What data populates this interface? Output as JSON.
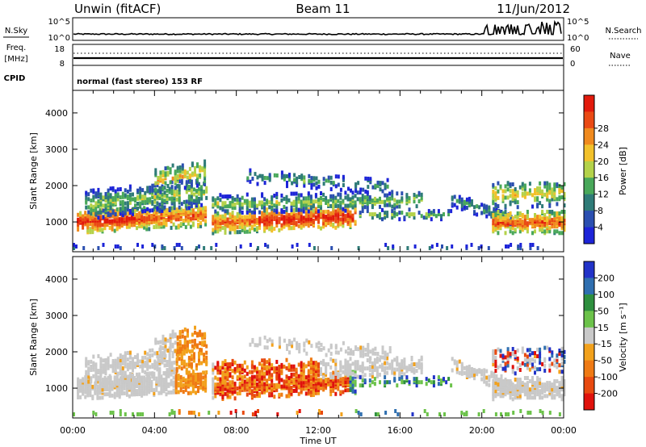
{
  "header": {
    "left": "Unwin (fitACF)",
    "center": "Beam 11",
    "right": "11/Jun/2012"
  },
  "panels": {
    "nsky": {
      "label": "N.Sky",
      "left_ticks": [
        "10^5",
        "10^0"
      ],
      "right_label": "N.Search",
      "right_ticks": [
        "10^5",
        "10^0"
      ]
    },
    "freq": {
      "label_line1": "Freq.",
      "label_line2": "[MHz]",
      "left_ticks": [
        "18",
        "8"
      ],
      "right_label": "Nave",
      "right_ticks": [
        "60",
        "0"
      ]
    },
    "cpid": {
      "label": "CPID",
      "mode": "normal (fast stereo) 153 RF"
    }
  },
  "chart_data": {
    "type": "heatmap",
    "x": {
      "label": "Time UT",
      "ticks": [
        "00:00",
        "04:00",
        "08:00",
        "12:00",
        "16:00",
        "20:00",
        "00:00"
      ],
      "range_hours": [
        0,
        24
      ]
    },
    "y": {
      "label": "Slant Range [km]",
      "ticks": [
        1000,
        2000,
        3000,
        4000
      ],
      "range_km": [
        180,
        4620
      ]
    },
    "panels": [
      {
        "name": "power",
        "colorbar_label": "Power [dB]",
        "colorbar_ticks": [
          "4",
          "8",
          "12",
          "16",
          "20",
          "24",
          "28"
        ],
        "colors": [
          "#1d24d8",
          "#2b4fb0",
          "#2f7b78",
          "#49a85a",
          "#b4d24a",
          "#f2c12b",
          "#f08a1e",
          "#ea4a14",
          "#e21a0c"
        ]
      },
      {
        "name": "velocity",
        "colorbar_label": "Velocity [m s⁻¹]",
        "colorbar_ticks": [
          "200",
          "100",
          "50",
          "15",
          "-15",
          "-50",
          "-100",
          "-200"
        ],
        "colors": [
          "#2233c8",
          "#2f6fb0",
          "#2e8f3e",
          "#6cc24a",
          "#c9c9c9",
          "#f2a11c",
          "#ef7a14",
          "#e84a10",
          "#e0120c"
        ]
      }
    ]
  }
}
